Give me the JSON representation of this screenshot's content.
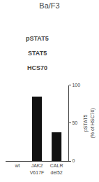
{
  "chart_data": {
    "type": "bar",
    "title": "Ba/F3",
    "categories": [
      "wt",
      "JAK2\nV617F",
      "CALR\ndel52"
    ],
    "values": [
      0,
      85,
      38
    ],
    "color": "#111111",
    "ylabel": "pSTAT5\n(% of HSC70)",
    "ylim": [
      0,
      100
    ],
    "yticks": [
      0,
      50,
      100
    ],
    "grid": false,
    "annotations": [
      "pSTAT5",
      "STAT5",
      "HCS70"
    ]
  }
}
